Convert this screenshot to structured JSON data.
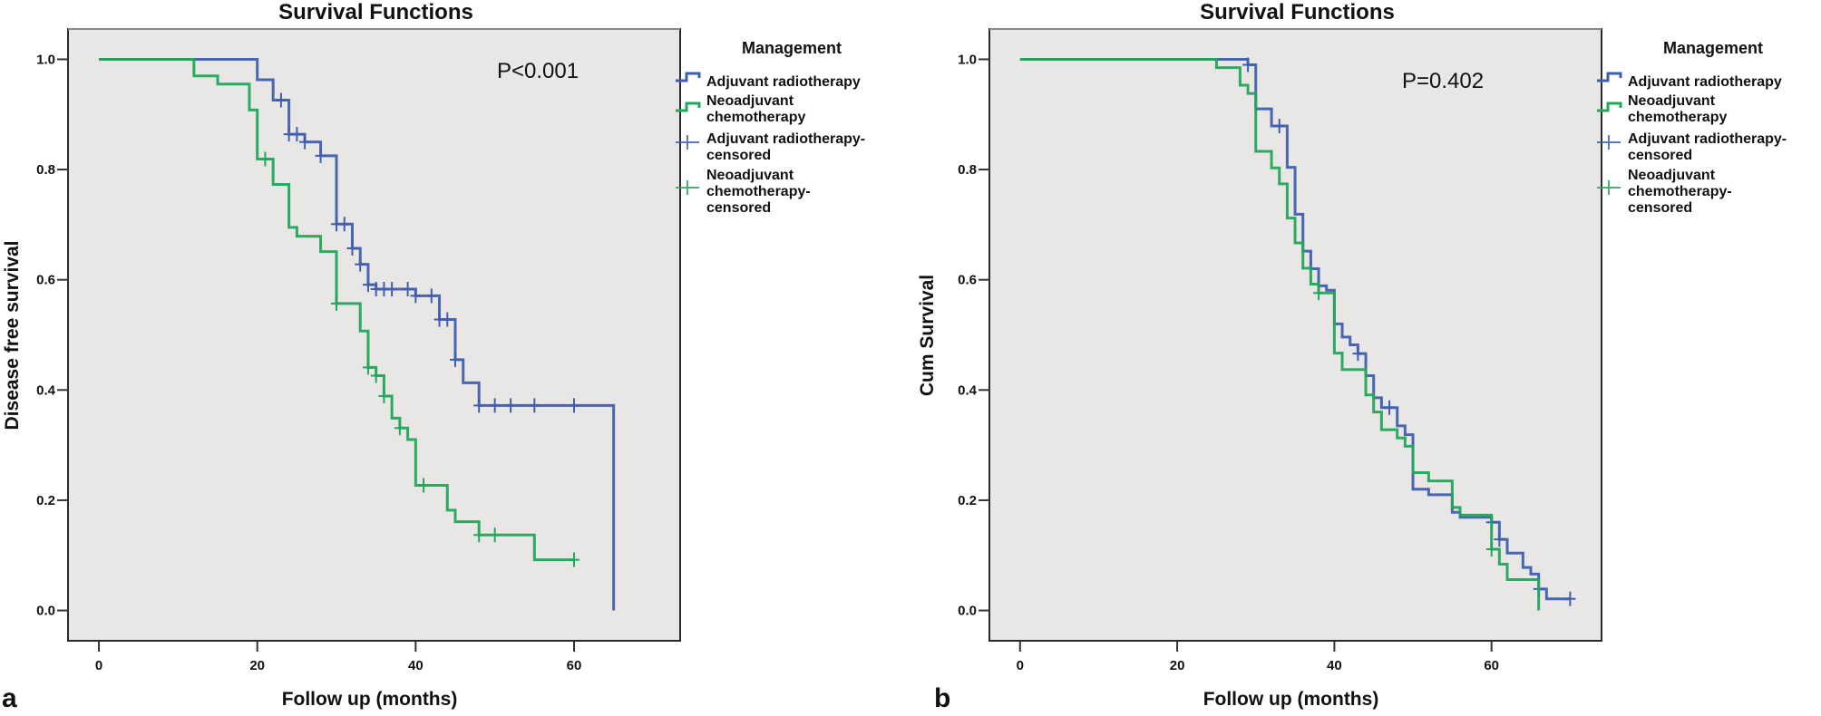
{
  "colors": {
    "adjuvant": "#3f5fae",
    "neoadjuvant": "#21a85a",
    "plot_bg": "#e8e7e5"
  },
  "chart_data": [
    {
      "type": "line",
      "subtype": "kaplan-meier-step",
      "panel_label": "a",
      "title": "Survival Functions",
      "xlabel": "Follow up (months)",
      "ylabel": "Disease free survival",
      "annotation": "P<0.001",
      "xlim": [
        -3.9,
        73.4
      ],
      "ylim": [
        -0.055,
        1.055
      ],
      "xticks": [
        "0",
        "20",
        "40",
        "60"
      ],
      "yticks": [
        "0.0",
        "0.2",
        "0.4",
        "0.6",
        "0.8",
        "1.0"
      ],
      "grid": false,
      "legend": {
        "title": "Management",
        "placement": "right",
        "entries": [
          {
            "lines": [
              "Adjuvant radiotherapy"
            ],
            "kind": "step",
            "series": "adjuvant"
          },
          {
            "lines": [
              "Neoadjuvant",
              "chemotherapy"
            ],
            "kind": "step",
            "series": "neoadjuvant"
          },
          {
            "lines": [
              "Adjuvant radiotherapy-",
              "censored"
            ],
            "kind": "censor",
            "series": "adjuvant"
          },
          {
            "lines": [
              "Neoadjuvant",
              "chemotherapy-",
              "censored"
            ],
            "kind": "censor",
            "series": "neoadjuvant"
          }
        ]
      },
      "series": [
        {
          "name": "Adjuvant radiotherapy",
          "key": "adjuvant",
          "times": [
            0,
            20,
            22,
            24,
            26,
            28,
            30,
            32,
            33,
            34,
            35,
            40,
            43,
            45,
            46,
            48,
            65
          ],
          "survival": [
            1.0,
            0.963,
            0.926,
            0.864,
            0.85,
            0.825,
            0.701,
            0.657,
            0.628,
            0.591,
            0.583,
            0.571,
            0.528,
            0.455,
            0.413,
            0.372,
            0.0
          ],
          "censored": [
            23,
            24,
            25,
            26,
            28,
            30,
            31,
            32,
            33,
            34,
            35,
            36,
            37,
            39,
            40,
            42,
            43,
            44,
            45,
            48,
            50,
            52,
            55,
            60
          ],
          "end": 65
        },
        {
          "name": "Neoadjuvant chemotherapy",
          "key": "neoadjuvant",
          "times": [
            0,
            12,
            15,
            19,
            20,
            22,
            24,
            25,
            28,
            30,
            33,
            34,
            35,
            36,
            37,
            38,
            39,
            40,
            44,
            45,
            48,
            55
          ],
          "survival": [
            1.0,
            0.97,
            0.955,
            0.908,
            0.819,
            0.773,
            0.695,
            0.679,
            0.651,
            0.557,
            0.507,
            0.441,
            0.426,
            0.389,
            0.349,
            0.331,
            0.31,
            0.227,
            0.182,
            0.161,
            0.137,
            0.092
          ],
          "censored": [
            21,
            30,
            34,
            35,
            36,
            38,
            41,
            48,
            50,
            60
          ],
          "end": 60
        }
      ]
    },
    {
      "type": "line",
      "subtype": "kaplan-meier-step",
      "panel_label": "b",
      "title": "Survival Functions",
      "xlabel": "Follow up (months)",
      "ylabel": "Cum Survival",
      "annotation": "P=0.402",
      "xlim": [
        -3.9,
        74.0
      ],
      "ylim": [
        -0.055,
        1.055
      ],
      "xticks": [
        "0",
        "20",
        "40",
        "60"
      ],
      "yticks": [
        "0.0",
        "0.2",
        "0.4",
        "0.6",
        "0.8",
        "1.0"
      ],
      "grid": false,
      "legend": {
        "title": "Management",
        "placement": "right",
        "entries": [
          {
            "lines": [
              "Adjuvant radiotherapy"
            ],
            "kind": "step",
            "series": "adjuvant"
          },
          {
            "lines": [
              "Neoadjuvant",
              "chemotherapy"
            ],
            "kind": "step",
            "series": "neoadjuvant"
          },
          {
            "lines": [
              "Adjuvant radiotherapy-",
              "censored"
            ],
            "kind": "censor",
            "series": "adjuvant"
          },
          {
            "lines": [
              "Neoadjuvant",
              "chemotherapy-",
              "censored"
            ],
            "kind": "censor",
            "series": "neoadjuvant"
          }
        ]
      },
      "series": [
        {
          "name": "Adjuvant radiotherapy",
          "key": "adjuvant",
          "times": [
            0,
            29,
            30,
            32,
            34,
            35,
            36,
            37,
            38,
            39,
            40,
            41,
            42,
            43,
            44,
            45,
            46,
            48,
            49,
            50,
            52,
            55,
            56,
            60,
            61,
            62,
            64,
            65,
            66,
            67
          ],
          "survival": [
            1.0,
            0.99,
            0.91,
            0.879,
            0.804,
            0.719,
            0.652,
            0.62,
            0.589,
            0.581,
            0.52,
            0.496,
            0.482,
            0.466,
            0.426,
            0.386,
            0.368,
            0.335,
            0.319,
            0.22,
            0.21,
            0.178,
            0.169,
            0.16,
            0.129,
            0.104,
            0.078,
            0.066,
            0.039,
            0.021
          ],
          "censored": [
            29,
            33,
            43,
            47,
            60,
            61,
            66,
            70
          ],
          "end": 70
        },
        {
          "name": "Neoadjuvant chemotherapy",
          "key": "neoadjuvant",
          "times": [
            0,
            25,
            28,
            29,
            30,
            32,
            33,
            34,
            35,
            36,
            37,
            38,
            40,
            41,
            44,
            45,
            46,
            48,
            49,
            50,
            52,
            55,
            56,
            60,
            61,
            62,
            66
          ],
          "survival": [
            1.0,
            0.985,
            0.953,
            0.938,
            0.833,
            0.803,
            0.774,
            0.712,
            0.667,
            0.621,
            0.592,
            0.576,
            0.467,
            0.437,
            0.391,
            0.36,
            0.328,
            0.313,
            0.298,
            0.25,
            0.235,
            0.187,
            0.173,
            0.111,
            0.084,
            0.056,
            0.0
          ],
          "censored": [
            38,
            60
          ],
          "end": 66
        }
      ]
    }
  ]
}
